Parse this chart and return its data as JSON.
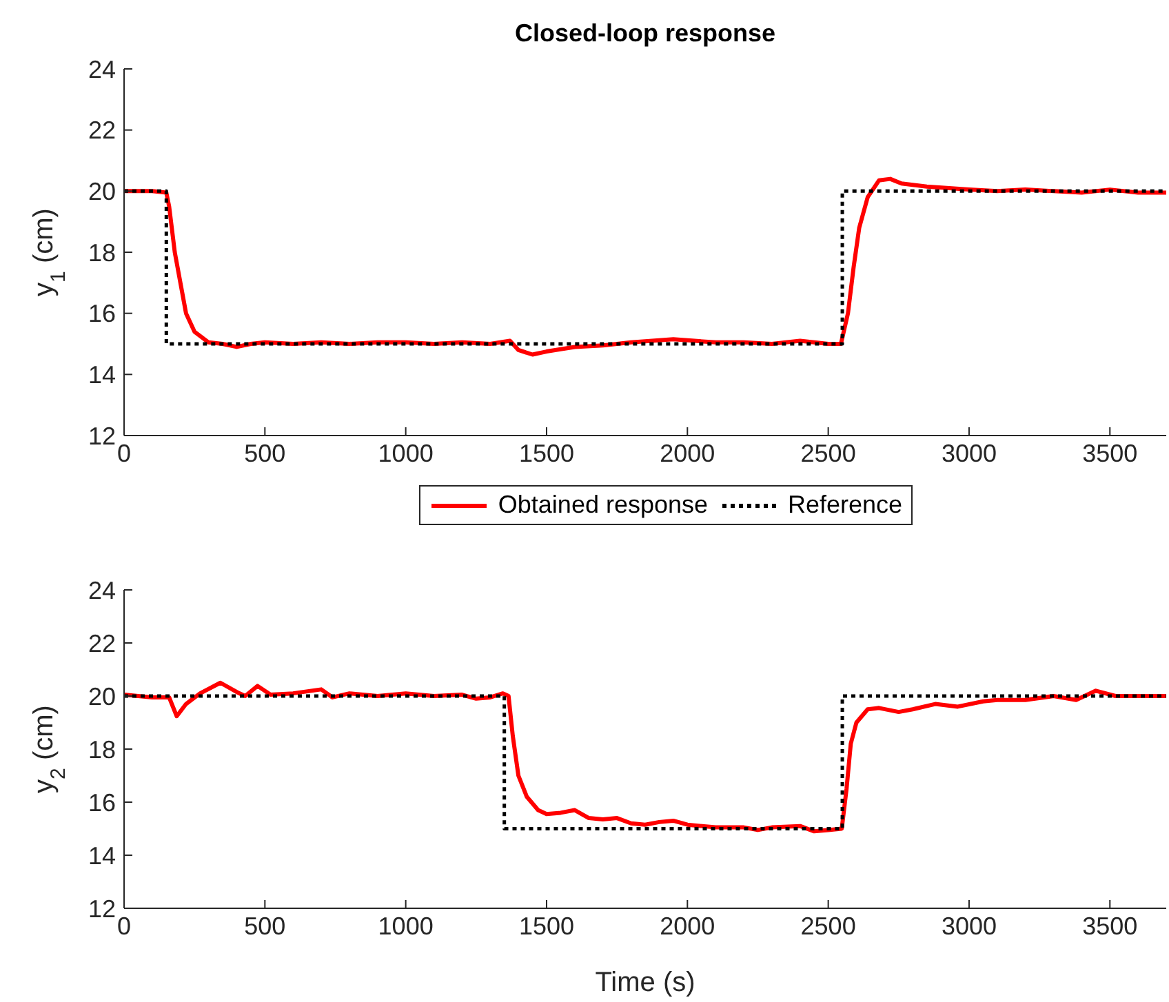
{
  "chart_data": [
    {
      "type": "line",
      "title": "Closed-loop response",
      "ylabel": "y$_{1}$ (cm)",
      "xlim": [
        0,
        3700
      ],
      "xticks": [
        0,
        500,
        1000,
        1500,
        2000,
        2500,
        3000,
        3500
      ],
      "ylim": [
        12,
        24
      ],
      "yticks": [
        12,
        14,
        16,
        18,
        20,
        22,
        24
      ],
      "grid": false,
      "legend": "bottom",
      "marker": "none",
      "series": [
        {
          "name": "Obtained response",
          "color": "#ff0000",
          "line_style": "solid",
          "x": [
            0,
            100,
            150,
            160,
            180,
            200,
            220,
            250,
            300,
            350,
            400,
            450,
            500,
            600,
            700,
            800,
            900,
            1000,
            1100,
            1200,
            1300,
            1370,
            1400,
            1450,
            1500,
            1600,
            1700,
            1800,
            1950,
            2100,
            2200,
            2300,
            2400,
            2500,
            2545,
            2570,
            2590,
            2610,
            2640,
            2680,
            2720,
            2760,
            2850,
            3000,
            3100,
            3200,
            3300,
            3400,
            3500,
            3600,
            3700
          ],
          "values": [
            20,
            20,
            19.95,
            19.5,
            18,
            17,
            16,
            15.4,
            15.05,
            15,
            14.9,
            15,
            15.05,
            15,
            15.05,
            15,
            15.05,
            15.05,
            15,
            15.05,
            15,
            15.1,
            14.8,
            14.65,
            14.75,
            14.9,
            14.95,
            15.05,
            15.15,
            15.05,
            15.05,
            15,
            15.1,
            15,
            15,
            16,
            17.5,
            18.8,
            19.8,
            20.35,
            20.4,
            20.25,
            20.15,
            20.05,
            20,
            20.05,
            20,
            19.95,
            20.05,
            19.95,
            19.95
          ]
        },
        {
          "name": "Reference",
          "color": "#000000",
          "line_style": "dotted",
          "x": [
            0,
            150,
            150,
            2550,
            2550,
            3700
          ],
          "values": [
            20,
            20,
            15,
            15,
            20,
            20
          ]
        }
      ]
    },
    {
      "type": "line",
      "xlabel": "Time (s)",
      "ylabel": "y$_{2}$ (cm)",
      "xlim": [
        0,
        3700
      ],
      "xticks": [
        0,
        500,
        1000,
        1500,
        2000,
        2500,
        3000,
        3500
      ],
      "ylim": [
        12,
        24
      ],
      "yticks": [
        12,
        14,
        16,
        18,
        20,
        22,
        24
      ],
      "grid": false,
      "marker": "none",
      "series": [
        {
          "color": "#ff0000",
          "line_style": "solid",
          "x": [
            0,
            50,
            100,
            160,
            187,
            220,
            270,
            342,
            400,
            430,
            474,
            520,
            600,
            700,
            740,
            800,
            900,
            1000,
            1100,
            1200,
            1250,
            1300,
            1345,
            1365,
            1380,
            1400,
            1430,
            1470,
            1500,
            1550,
            1600,
            1650,
            1700,
            1750,
            1800,
            1850,
            1900,
            1950,
            2000,
            2100,
            2200,
            2250,
            2300,
            2400,
            2450,
            2500,
            2548,
            2565,
            2580,
            2600,
            2640,
            2680,
            2750,
            2800,
            2880,
            2960,
            3050,
            3100,
            3200,
            3300,
            3380,
            3450,
            3520,
            3600,
            3700
          ],
          "values": [
            20.05,
            20,
            19.95,
            19.95,
            19.24,
            19.7,
            20.1,
            20.5,
            20.15,
            20,
            20.38,
            20.05,
            20.1,
            20.25,
            19.95,
            20.1,
            20,
            20.1,
            20,
            20.05,
            19.9,
            19.95,
            20.1,
            20,
            18.5,
            17,
            16.2,
            15.7,
            15.55,
            15.6,
            15.7,
            15.4,
            15.35,
            15.4,
            15.2,
            15.15,
            15.25,
            15.3,
            15.15,
            15.05,
            15.05,
            14.95,
            15.05,
            15.1,
            14.9,
            14.95,
            15,
            16.5,
            18.2,
            19.0,
            19.5,
            19.55,
            19.4,
            19.5,
            19.7,
            19.6,
            19.8,
            19.85,
            19.85,
            20,
            19.85,
            20.2,
            20,
            20,
            20
          ]
        },
        {
          "color": "#000000",
          "line_style": "dotted",
          "x": [
            0,
            1350,
            1350,
            2550,
            2550,
            3700
          ],
          "values": [
            20,
            20,
            15,
            15,
            20,
            20
          ]
        }
      ]
    }
  ]
}
